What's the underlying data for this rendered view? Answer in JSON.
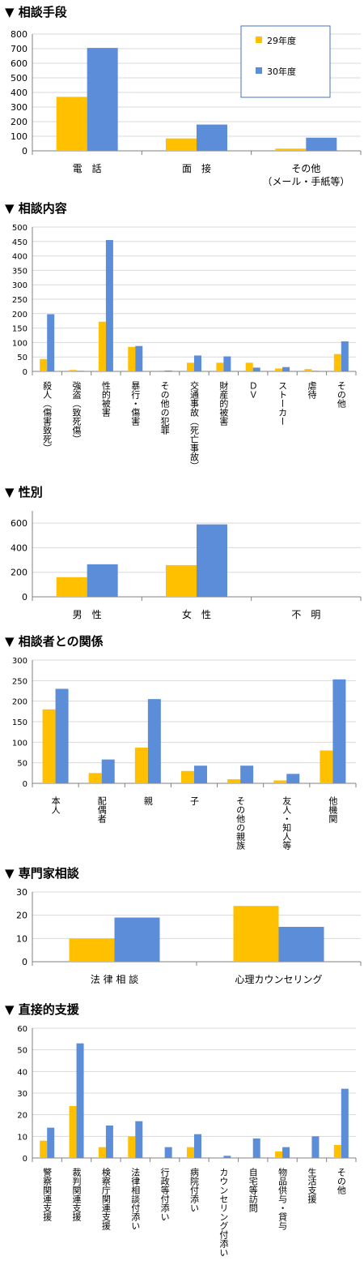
{
  "colors": {
    "s29": "#FFC000",
    "s30": "#5B8DD9",
    "grid": "#d9d9d9",
    "axis": "#808080"
  },
  "chart_data": [
    {
      "id": "c1",
      "type": "bar",
      "title": "▼ 相談手段",
      "ylim": [
        0,
        800
      ],
      "yticks": [
        0,
        100,
        200,
        300,
        400,
        500,
        600,
        700,
        800
      ],
      "legend": {
        "position": "top-right",
        "entries": [
          "29年度",
          "30年度"
        ]
      },
      "categories": [
        [
          "電　話"
        ],
        [
          "面　接"
        ],
        [
          "その他",
          "（メール・手紙等）"
        ]
      ],
      "series": [
        {
          "name": "29年度",
          "values": [
            370,
            85,
            15
          ]
        },
        {
          "name": "30年度",
          "values": [
            705,
            180,
            90
          ]
        }
      ]
    },
    {
      "id": "c2",
      "type": "bar",
      "title": "▼ 相談内容",
      "ylim": [
        0,
        500
      ],
      "yticks": [
        0,
        50,
        100,
        150,
        200,
        250,
        300,
        350,
        400,
        450,
        500
      ],
      "categories": [
        "殺人（傷害致死）",
        "強盗（致死傷）",
        "性的被害",
        "暴行・傷害",
        "その他の犯罪",
        "交通事故（死亡事故）",
        "財産的被害",
        "ＤＶ",
        "ストーカー",
        "虐待",
        "その他"
      ],
      "series": [
        {
          "name": "29年度",
          "values": [
            43,
            5,
            172,
            85,
            3,
            30,
            30,
            30,
            10,
            8,
            60
          ]
        },
        {
          "name": "30年度",
          "values": [
            198,
            2,
            455,
            88,
            3,
            55,
            52,
            13,
            15,
            2,
            104
          ]
        }
      ]
    },
    {
      "id": "c3",
      "type": "bar",
      "title": "▼ 性別",
      "ylim": [
        0,
        700
      ],
      "yticks": [
        0,
        200,
        400,
        600
      ],
      "categories": [
        [
          "男　性"
        ],
        [
          "女　性"
        ],
        [
          "不　明"
        ]
      ],
      "series": [
        {
          "name": "29年度",
          "values": [
            160,
            258,
            0
          ]
        },
        {
          "name": "30年度",
          "values": [
            265,
            590,
            0
          ]
        }
      ]
    },
    {
      "id": "c4",
      "type": "bar",
      "title": "▼ 相談者との関係",
      "ylim": [
        0,
        300
      ],
      "yticks": [
        0,
        50,
        100,
        150,
        200,
        250,
        300
      ],
      "categories": [
        "本人",
        "配偶者",
        "親",
        "子",
        "その他の親族",
        "友人・知人等",
        "他機関"
      ],
      "series": [
        {
          "name": "29年度",
          "values": [
            180,
            25,
            87,
            30,
            10,
            7,
            80
          ]
        },
        {
          "name": "30年度",
          "values": [
            230,
            58,
            205,
            43,
            43,
            23,
            253
          ]
        }
      ]
    },
    {
      "id": "c5",
      "type": "bar",
      "title": "▼ 専門家相談",
      "ylim": [
        0,
        30
      ],
      "yticks": [
        0,
        10,
        20,
        30
      ],
      "categories": [
        [
          "法 律 相 談"
        ],
        [
          "心理カウンセリング"
        ]
      ],
      "series": [
        {
          "name": "29年度",
          "values": [
            10,
            24
          ]
        },
        {
          "name": "30年度",
          "values": [
            19,
            15
          ]
        }
      ]
    },
    {
      "id": "c6",
      "type": "bar",
      "title": "▼ 直接的支援",
      "ylim": [
        0,
        60
      ],
      "yticks": [
        0,
        10,
        20,
        30,
        40,
        50,
        60
      ],
      "categories": [
        "警察関連支援",
        "裁判関連支援",
        "検察庁関連支援",
        "法律相談付添い",
        "行政等付添い",
        "病院付添い",
        "カウンセリング付添い",
        "自宅等訪問",
        "物品供与・貸与",
        "生活支援",
        "その他"
      ],
      "series": [
        {
          "name": "29年度",
          "values": [
            8,
            24,
            5,
            10,
            0,
            5,
            0,
            0,
            3,
            0,
            6
          ]
        },
        {
          "name": "30年度",
          "values": [
            14,
            53,
            15,
            17,
            5,
            11,
            1,
            9,
            5,
            10,
            32
          ]
        }
      ]
    }
  ]
}
